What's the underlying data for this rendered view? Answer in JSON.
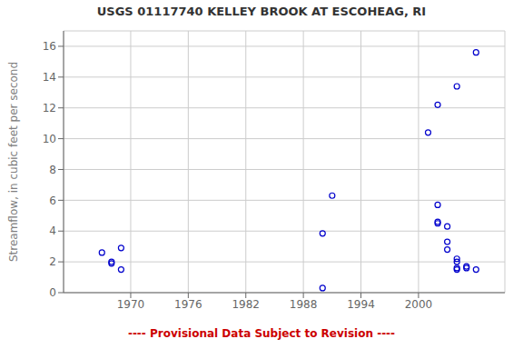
{
  "chart_data": {
    "type": "scatter",
    "title": "USGS 01117740 KELLEY BROOK AT ESCOHEAG, RI",
    "ylabel": "Streamflow, in cubic feet per second",
    "annotations": [
      {
        "text": "---- Provisional Data Subject to Revision ----",
        "color": "#cc0000"
      }
    ],
    "x": [
      1967,
      1968,
      1968,
      1969,
      1969,
      1990,
      1991,
      1990,
      2001,
      2002,
      2002,
      2002,
      2002,
      2003,
      2003,
      2003,
      2004,
      2004,
      2004,
      2004,
      2004,
      2005,
      2005,
      2006,
      2006
    ],
    "values": [
      2.6,
      1.9,
      2.0,
      1.5,
      2.9,
      3.85,
      6.3,
      0.3,
      10.4,
      5.7,
      4.5,
      4.6,
      12.2,
      3.3,
      2.8,
      4.3,
      2.0,
      1.5,
      1.6,
      2.2,
      13.4,
      1.6,
      1.7,
      15.6,
      1.5
    ],
    "color": "#0000cc",
    "marker": "circle",
    "xlim": [
      1963,
      2009
    ],
    "ylim": [
      0,
      17
    ],
    "xticks": [
      1970,
      1976,
      1982,
      1988,
      1994,
      2000
    ],
    "yticks": [
      0,
      2,
      4,
      6,
      8,
      10,
      12,
      14,
      16
    ],
    "grid": true
  }
}
